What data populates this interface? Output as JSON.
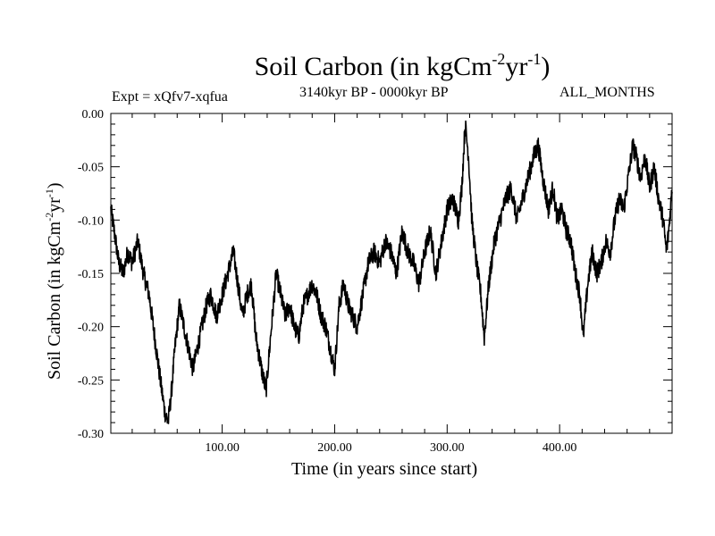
{
  "title_prefix": "Soil Carbon (in kgCm",
  "title_exp1": "-2",
  "title_mid": "yr",
  "title_exp2": "-1",
  "title_suffix": ")",
  "expt_label": "Expt = xQfv7-xqfua",
  "period_label": "3140kyr BP - 0000kyr BP",
  "months_label": "ALL_MONTHS",
  "xlabel": "Time (in years since start)",
  "ylabel_prefix": "Soil Carbon (in kgCm",
  "ylabel_exp1": "-2",
  "ylabel_mid": "yr",
  "ylabel_exp2": "-1",
  "ylabel_suffix": ")",
  "chart_data": {
    "type": "line",
    "title": "Soil Carbon (in kgCm-2yr-1)",
    "xlabel": "Time (in years since start)",
    "ylabel": "Soil Carbon (in kgCm-2yr-1)",
    "xlim": [
      1,
      500
    ],
    "ylim": [
      -0.3,
      0.0
    ],
    "xticks": [
      100,
      200,
      300,
      400
    ],
    "xtick_labels": [
      "100.00",
      "200.00",
      "300.00",
      "400.00"
    ],
    "yticks": [
      0.0,
      -0.05,
      -0.1,
      -0.15,
      -0.2,
      -0.25,
      -0.3
    ],
    "ytick_labels": [
      "0.00",
      "-0.05",
      "-0.10",
      "-0.15",
      "-0.20",
      "-0.25",
      "-0.30"
    ],
    "grid": false,
    "series": [
      {
        "name": "Soil Carbon",
        "color": "#000000",
        "anchors": [
          [
            1,
            -0.09
          ],
          [
            4,
            -0.11
          ],
          [
            8,
            -0.14
          ],
          [
            12,
            -0.15
          ],
          [
            16,
            -0.13
          ],
          [
            20,
            -0.14
          ],
          [
            25,
            -0.12
          ],
          [
            30,
            -0.15
          ],
          [
            35,
            -0.17
          ],
          [
            40,
            -0.21
          ],
          [
            45,
            -0.25
          ],
          [
            49,
            -0.28
          ],
          [
            52,
            -0.29
          ],
          [
            55,
            -0.26
          ],
          [
            58,
            -0.22
          ],
          [
            62,
            -0.18
          ],
          [
            66,
            -0.2
          ],
          [
            70,
            -0.22
          ],
          [
            74,
            -0.24
          ],
          [
            78,
            -0.22
          ],
          [
            82,
            -0.2
          ],
          [
            86,
            -0.18
          ],
          [
            90,
            -0.17
          ],
          [
            95,
            -0.19
          ],
          [
            100,
            -0.17
          ],
          [
            105,
            -0.15
          ],
          [
            110,
            -0.13
          ],
          [
            114,
            -0.16
          ],
          [
            118,
            -0.19
          ],
          [
            122,
            -0.17
          ],
          [
            126,
            -0.16
          ],
          [
            130,
            -0.21
          ],
          [
            135,
            -0.24
          ],
          [
            139,
            -0.26
          ],
          [
            143,
            -0.21
          ],
          [
            148,
            -0.15
          ],
          [
            152,
            -0.17
          ],
          [
            156,
            -0.19
          ],
          [
            160,
            -0.18
          ],
          [
            164,
            -0.2
          ],
          [
            168,
            -0.21
          ],
          [
            172,
            -0.18
          ],
          [
            176,
            -0.17
          ],
          [
            180,
            -0.16
          ],
          [
            184,
            -0.17
          ],
          [
            188,
            -0.19
          ],
          [
            192,
            -0.2
          ],
          [
            196,
            -0.22
          ],
          [
            200,
            -0.24
          ],
          [
            204,
            -0.18
          ],
          [
            208,
            -0.16
          ],
          [
            212,
            -0.18
          ],
          [
            216,
            -0.19
          ],
          [
            220,
            -0.2
          ],
          [
            225,
            -0.17
          ],
          [
            230,
            -0.14
          ],
          [
            235,
            -0.13
          ],
          [
            240,
            -0.14
          ],
          [
            245,
            -0.12
          ],
          [
            250,
            -0.13
          ],
          [
            255,
            -0.15
          ],
          [
            260,
            -0.11
          ],
          [
            265,
            -0.13
          ],
          [
            270,
            -0.14
          ],
          [
            275,
            -0.16
          ],
          [
            280,
            -0.13
          ],
          [
            285,
            -0.11
          ],
          [
            290,
            -0.15
          ],
          [
            295,
            -0.12
          ],
          [
            300,
            -0.09
          ],
          [
            305,
            -0.08
          ],
          [
            310,
            -0.1
          ],
          [
            313,
            -0.07
          ],
          [
            316,
            -0.01
          ],
          [
            319,
            -0.04
          ],
          [
            322,
            -0.1
          ],
          [
            326,
            -0.14
          ],
          [
            330,
            -0.17
          ],
          [
            333,
            -0.21
          ],
          [
            337,
            -0.16
          ],
          [
            342,
            -0.12
          ],
          [
            347,
            -0.1
          ],
          [
            352,
            -0.08
          ],
          [
            357,
            -0.07
          ],
          [
            362,
            -0.1
          ],
          [
            367,
            -0.08
          ],
          [
            372,
            -0.06
          ],
          [
            377,
            -0.04
          ],
          [
            381,
            -0.03
          ],
          [
            385,
            -0.06
          ],
          [
            390,
            -0.09
          ],
          [
            394,
            -0.07
          ],
          [
            398,
            -0.1
          ],
          [
            402,
            -0.09
          ],
          [
            406,
            -0.11
          ],
          [
            410,
            -0.12
          ],
          [
            414,
            -0.15
          ],
          [
            418,
            -0.17
          ],
          [
            421,
            -0.21
          ],
          [
            425,
            -0.16
          ],
          [
            429,
            -0.13
          ],
          [
            433,
            -0.15
          ],
          [
            437,
            -0.14
          ],
          [
            441,
            -0.12
          ],
          [
            445,
            -0.13
          ],
          [
            449,
            -0.1
          ],
          [
            453,
            -0.08
          ],
          [
            457,
            -0.09
          ],
          [
            461,
            -0.06
          ],
          [
            465,
            -0.03
          ],
          [
            468,
            -0.04
          ],
          [
            472,
            -0.06
          ],
          [
            476,
            -0.04
          ],
          [
            480,
            -0.07
          ],
          [
            484,
            -0.05
          ],
          [
            488,
            -0.08
          ],
          [
            492,
            -0.1
          ],
          [
            495,
            -0.13
          ],
          [
            497,
            -0.11
          ],
          [
            500,
            -0.07
          ]
        ]
      }
    ]
  }
}
